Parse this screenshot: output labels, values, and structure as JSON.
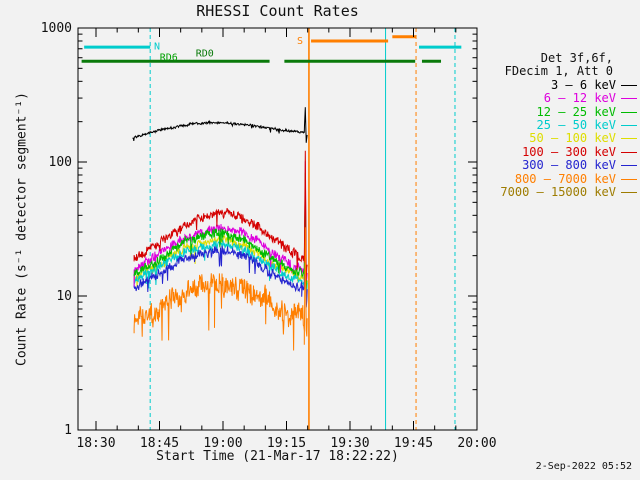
{
  "title": "RHESSI Count Rates",
  "axes": {
    "xlabel": "Start Time (21-Mar-17 18:22:22)",
    "ylabel": "Count Rate (s⁻¹ detector segment⁻¹)"
  },
  "timestamp": "2-Sep-2022 05:52",
  "legend": {
    "header1": "Det 3f,6f,",
    "header2": "FDecim 1, Att 0",
    "entries": [
      {
        "label": "3 – 6 keV",
        "color": "#000000"
      },
      {
        "label": "6 – 12 keV",
        "color": "#dd00dd"
      },
      {
        "label": "12 – 25 keV",
        "color": "#00bb00"
      },
      {
        "label": "25 – 50 keV",
        "color": "#00cccc"
      },
      {
        "label": "50 – 100 keV",
        "color": "#dede00"
      },
      {
        "label": "100 – 300 keV",
        "color": "#d40000"
      },
      {
        "label": "300 – 800 keV",
        "color": "#2424cf"
      },
      {
        "label": "800 – 7000 keV",
        "color": "#ff7f00"
      },
      {
        "label": "7000 – 15000 keV",
        "color": "#9e7c00"
      }
    ]
  },
  "chart_data": {
    "type": "line",
    "title": "RHESSI Count Rates",
    "xlabel": "Start Time (21-Mar-17 18:22:22)",
    "ylabel": "Count Rate (s-1 detector segment-1)",
    "y_axis": {
      "scale": "log",
      "min": 1,
      "max": 1000,
      "ticks": [
        1,
        10,
        100,
        1000
      ]
    },
    "x_axis": {
      "unit": "minutes after 18:00 on 21-Mar-17",
      "min": 25.75,
      "max": 120,
      "minor_step": 5,
      "major_ticks": [
        {
          "t": 30,
          "label": "18:30"
        },
        {
          "t": 45,
          "label": "18:45"
        },
        {
          "t": 60,
          "label": "19:00"
        },
        {
          "t": 75,
          "label": "19:15"
        },
        {
          "t": 90,
          "label": "19:30"
        },
        {
          "t": 105,
          "label": "19:45"
        },
        {
          "t": 120,
          "label": "20:00"
        }
      ]
    },
    "series": [
      {
        "name": "50 - 100 keV",
        "color": "#dede00",
        "noise": 0.032,
        "seed": 3,
        "width": 1,
        "points": [
          [
            39,
            13.5
          ],
          [
            43,
            16
          ],
          [
            47,
            19
          ],
          [
            51,
            23
          ],
          [
            55,
            25
          ],
          [
            58,
            26
          ],
          [
            60,
            26
          ],
          [
            62,
            25.5
          ],
          [
            65,
            24
          ],
          [
            68,
            21
          ],
          [
            71,
            18
          ],
          [
            74,
            16
          ],
          [
            76,
            14.5
          ],
          [
            78.6,
            14
          ],
          [
            79.2,
            14
          ],
          [
            79.45,
            70
          ],
          [
            79.65,
            10
          ],
          [
            79.9,
            13
          ]
        ]
      },
      {
        "name": "25 - 50 keV",
        "color": "#00cccc",
        "noise": 0.032,
        "seed": 7,
        "width": 1,
        "points": [
          [
            39,
            13
          ],
          [
            43,
            15
          ],
          [
            47,
            18
          ],
          [
            51,
            21
          ],
          [
            55,
            23
          ],
          [
            58,
            24
          ],
          [
            60,
            24
          ],
          [
            62,
            23.5
          ],
          [
            65,
            22
          ],
          [
            68,
            19
          ],
          [
            71,
            17
          ],
          [
            74,
            14.5
          ],
          [
            76,
            13.5
          ],
          [
            78.6,
            13
          ],
          [
            79.2,
            13
          ],
          [
            79.45,
            62
          ],
          [
            79.65,
            9
          ],
          [
            79.9,
            12
          ]
        ]
      },
      {
        "name": "300 - 800 keV",
        "color": "#2424cf",
        "noise": 0.032,
        "seed": 11,
        "width": 1,
        "points": [
          [
            39,
            11.5
          ],
          [
            43,
            13.5
          ],
          [
            47,
            16
          ],
          [
            51,
            19
          ],
          [
            55,
            21
          ],
          [
            58,
            22
          ],
          [
            60,
            22
          ],
          [
            62,
            21.5
          ],
          [
            65,
            20
          ],
          [
            68,
            17.5
          ],
          [
            71,
            15
          ],
          [
            74,
            13
          ],
          [
            76,
            12
          ],
          [
            78.6,
            11.5
          ],
          [
            79.2,
            11.5
          ],
          [
            79.45,
            55
          ],
          [
            79.65,
            8
          ],
          [
            79.9,
            11
          ]
        ]
      },
      {
        "name": "6 - 12 keV",
        "color": "#dd00dd",
        "noise": 0.032,
        "seed": 13,
        "width": 1,
        "points": [
          [
            39,
            16
          ],
          [
            43,
            19
          ],
          [
            47,
            23
          ],
          [
            51,
            27
          ],
          [
            55,
            30
          ],
          [
            58,
            32
          ],
          [
            60,
            32
          ],
          [
            62,
            31
          ],
          [
            65,
            29
          ],
          [
            68,
            26
          ],
          [
            71,
            22
          ],
          [
            74,
            19
          ],
          [
            76,
            17
          ],
          [
            78.6,
            16
          ],
          [
            79.2,
            16
          ],
          [
            79.45,
            100
          ],
          [
            79.65,
            12
          ],
          [
            79.9,
            15
          ]
        ]
      },
      {
        "name": "12 - 25 keV",
        "color": "#00bb00",
        "noise": 0.032,
        "seed": 17,
        "width": 1,
        "points": [
          [
            39,
            15
          ],
          [
            43,
            17
          ],
          [
            47,
            21
          ],
          [
            51,
            25
          ],
          [
            55,
            28
          ],
          [
            58,
            29
          ],
          [
            60,
            29
          ],
          [
            62,
            28
          ],
          [
            65,
            26
          ],
          [
            68,
            23
          ],
          [
            71,
            20
          ],
          [
            74,
            17
          ],
          [
            76,
            16
          ],
          [
            78.6,
            15
          ],
          [
            79.2,
            15
          ],
          [
            79.45,
            85
          ],
          [
            79.65,
            11
          ],
          [
            79.9,
            14
          ]
        ]
      },
      {
        "name": "100 - 300 keV",
        "color": "#d40000",
        "noise": 0.032,
        "seed": 19,
        "width": 1,
        "points": [
          [
            39,
            19
          ],
          [
            43,
            23
          ],
          [
            47,
            28
          ],
          [
            51,
            33
          ],
          [
            55,
            38
          ],
          [
            58,
            41
          ],
          [
            60,
            42
          ],
          [
            62,
            41
          ],
          [
            65,
            38
          ],
          [
            68,
            33
          ],
          [
            71,
            28
          ],
          [
            74,
            24
          ],
          [
            76,
            21
          ],
          [
            78.6,
            19
          ],
          [
            79.2,
            19
          ],
          [
            79.45,
            130
          ],
          [
            79.65,
            14
          ],
          [
            79.9,
            18
          ]
        ]
      },
      {
        "name": "800 - 7000 keV",
        "color": "#ff7f00",
        "noise": 0.085,
        "seed": 23,
        "width": 1,
        "points": [
          [
            39,
            6.5
          ],
          [
            43,
            7.5
          ],
          [
            47,
            9
          ],
          [
            51,
            10.5
          ],
          [
            55,
            12
          ],
          [
            58,
            12.5
          ],
          [
            60,
            12.5
          ],
          [
            62,
            12
          ],
          [
            65,
            11
          ],
          [
            68,
            10
          ],
          [
            71,
            8.5
          ],
          [
            74,
            7.5
          ],
          [
            76,
            7
          ],
          [
            78.6,
            6.8
          ],
          [
            79.2,
            6.8
          ],
          [
            79.45,
            30
          ],
          [
            79.65,
            5
          ],
          [
            79.9,
            6.5
          ]
        ]
      },
      {
        "name": "3 - 6 keV",
        "color": "#000000",
        "noise": 0.008,
        "seed": 29,
        "width": 1,
        "points": [
          [
            38.7,
            152
          ],
          [
            41,
            160
          ],
          [
            44,
            170
          ],
          [
            47,
            178
          ],
          [
            50,
            186
          ],
          [
            53,
            192
          ],
          [
            56,
            196
          ],
          [
            59,
            197
          ],
          [
            61,
            196
          ],
          [
            63,
            193
          ],
          [
            65,
            190
          ],
          [
            67,
            187
          ],
          [
            69,
            183
          ],
          [
            71,
            179
          ],
          [
            73,
            175
          ],
          [
            75,
            171
          ],
          [
            77,
            168
          ],
          [
            78.8,
            166
          ],
          [
            79.2,
            167
          ],
          [
            79.45,
            255
          ],
          [
            79.65,
            140
          ],
          [
            79.9,
            163
          ]
        ]
      },
      {
        "name": "7000 - 15000 keV",
        "color": "#9e7c00",
        "noise": 0.03,
        "seed": 31,
        "width": 1,
        "points": []
      }
    ],
    "bars": [
      {
        "label": "N",
        "from": 27.2,
        "to": 42.8,
        "value": 720,
        "color": "#00cccc"
      },
      {
        "label": "N",
        "from": 106.3,
        "to": 116.3,
        "value": 720,
        "color": "#00cccc"
      },
      {
        "label": "S",
        "from": 80.8,
        "to": 99.0,
        "value": 800,
        "color": "#ff7f00"
      },
      {
        "label": "S",
        "from": 100.0,
        "to": 105.5,
        "value": 860,
        "color": "#ff7f00"
      },
      {
        "label": "RD",
        "from": 26.6,
        "to": 71.0,
        "value": 565,
        "color": "#0a7a0a"
      },
      {
        "label": "RD",
        "from": 74.5,
        "to": 105.4,
        "value": 565,
        "color": "#0a7a0a"
      },
      {
        "label": "RD",
        "from": 107.0,
        "to": 111.5,
        "value": 565,
        "color": "#0a7a0a"
      }
    ],
    "vlines": [
      {
        "t": 42.8,
        "color": "#00cccc",
        "style": "dashed",
        "width": 1
      },
      {
        "t": 80.3,
        "color": "#ff7f00",
        "style": "solid",
        "width": 1.6
      },
      {
        "t": 98.4,
        "color": "#00cccc",
        "style": "solid",
        "width": 1
      },
      {
        "t": 105.6,
        "color": "#ff7f00",
        "style": "dashed",
        "width": 1
      },
      {
        "t": 114.8,
        "color": "#00cccc",
        "style": "dashed",
        "width": 1
      }
    ],
    "annotations": [
      {
        "text": "N",
        "t": 44.4,
        "v": 730,
        "color": "#00cccc"
      },
      {
        "text": "S",
        "t": 78.2,
        "v": 800,
        "color": "#ff7f00"
      },
      {
        "text": "RD0",
        "t": 55.7,
        "v": 645,
        "color": "#067806"
      },
      {
        "text": "RD6",
        "t": 47.2,
        "v": 600,
        "color": "#00a000"
      }
    ]
  }
}
